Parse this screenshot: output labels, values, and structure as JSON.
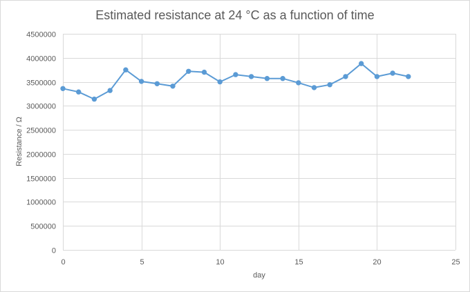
{
  "chart_data": {
    "type": "scatter",
    "title": "Estimated resistance at 24 °C as a function of time",
    "xlabel": "day",
    "ylabel": "Resistance / Ω",
    "xlim": [
      0,
      25
    ],
    "ylim": [
      0,
      4500000
    ],
    "xticks": [
      0,
      5,
      10,
      15,
      20,
      25
    ],
    "yticks": [
      0,
      500000,
      1000000,
      1500000,
      2000000,
      2500000,
      3000000,
      3500000,
      4000000,
      4500000
    ],
    "grid": true,
    "legend": "none",
    "color": "#5b9bd5",
    "x": [
      0,
      1,
      2,
      3,
      4,
      5,
      6,
      7,
      8,
      9,
      10,
      11,
      12,
      13,
      14,
      15,
      16,
      17,
      18,
      19,
      20,
      21,
      22
    ],
    "y": [
      3360000,
      3290000,
      3140000,
      3320000,
      3750000,
      3510000,
      3460000,
      3410000,
      3720000,
      3700000,
      3500000,
      3650000,
      3610000,
      3570000,
      3570000,
      3480000,
      3380000,
      3440000,
      3610000,
      3880000,
      3610000,
      3680000,
      3610000
    ]
  }
}
